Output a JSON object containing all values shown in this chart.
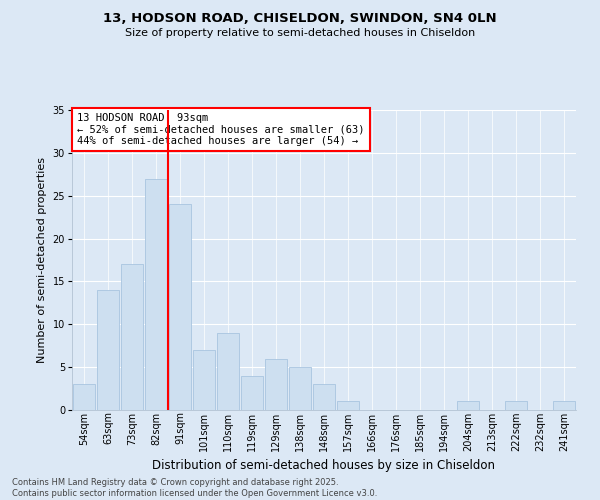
{
  "title1": "13, HODSON ROAD, CHISELDON, SWINDON, SN4 0LN",
  "title2": "Size of property relative to semi-detached houses in Chiseldon",
  "xlabel": "Distribution of semi-detached houses by size in Chiseldon",
  "ylabel": "Number of semi-detached properties",
  "categories": [
    "54sqm",
    "63sqm",
    "73sqm",
    "82sqm",
    "91sqm",
    "101sqm",
    "110sqm",
    "119sqm",
    "129sqm",
    "138sqm",
    "148sqm",
    "157sqm",
    "166sqm",
    "176sqm",
    "185sqm",
    "194sqm",
    "204sqm",
    "213sqm",
    "222sqm",
    "232sqm",
    "241sqm"
  ],
  "values": [
    3,
    14,
    17,
    27,
    24,
    7,
    9,
    4,
    6,
    5,
    3,
    1,
    0,
    0,
    0,
    0,
    1,
    0,
    1,
    0,
    1
  ],
  "vline_x": 4,
  "annotation_text": "13 HODSON ROAD: 93sqm\n← 52% of semi-detached houses are smaller (63)\n44% of semi-detached houses are larger (54) →",
  "bar_color": "#cddff0",
  "bar_edge_color": "#a8c4e0",
  "vline_color": "red",
  "annotation_box_color": "white",
  "annotation_box_edge": "red",
  "background_color": "#dce8f5",
  "grid_color": "white",
  "footer_text": "Contains HM Land Registry data © Crown copyright and database right 2025.\nContains public sector information licensed under the Open Government Licence v3.0.",
  "ylim": [
    0,
    35
  ],
  "yticks": [
    0,
    5,
    10,
    15,
    20,
    25,
    30,
    35
  ],
  "title1_fontsize": 9.5,
  "title2_fontsize": 8,
  "ylabel_fontsize": 8,
  "xlabel_fontsize": 8.5,
  "tick_fontsize": 7,
  "annotation_fontsize": 7.5,
  "footer_fontsize": 6
}
